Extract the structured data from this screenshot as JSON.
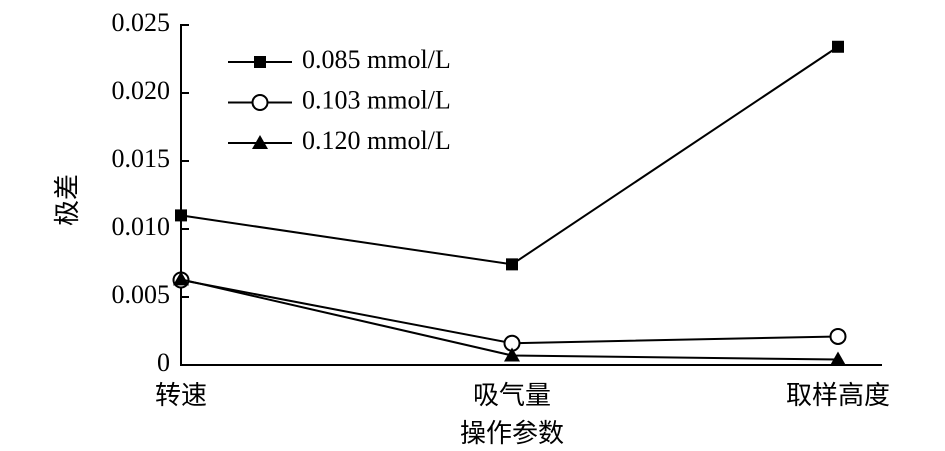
{
  "chart_data": {
    "type": "line",
    "categories": [
      "转速",
      "吸气量",
      "取样高度"
    ],
    "x_label": "操作参数",
    "y_label": "极差",
    "ylim": [
      0,
      0.025
    ],
    "yticks": [
      0,
      0.005,
      {
        "value": 0.01,
        "label": "0.010"
      },
      0.015,
      {
        "value": 0.02,
        "label": "0.020"
      },
      0.025
    ],
    "series": [
      {
        "name": "0.085 mmol/L",
        "color": "#000000",
        "marker": "square",
        "values": [
          0.011,
          0.0074,
          0.0234
        ]
      },
      {
        "name": "0.103 mmol/L",
        "color": "#000000",
        "marker": "circle",
        "values": [
          0.00625,
          0.0016,
          0.0021
        ]
      },
      {
        "name": "0.120 mmol/L",
        "color": "#000000",
        "marker": "triangle",
        "values": [
          0.0063,
          0.0007,
          0.0004
        ]
      }
    ],
    "legend": "top-left"
  }
}
